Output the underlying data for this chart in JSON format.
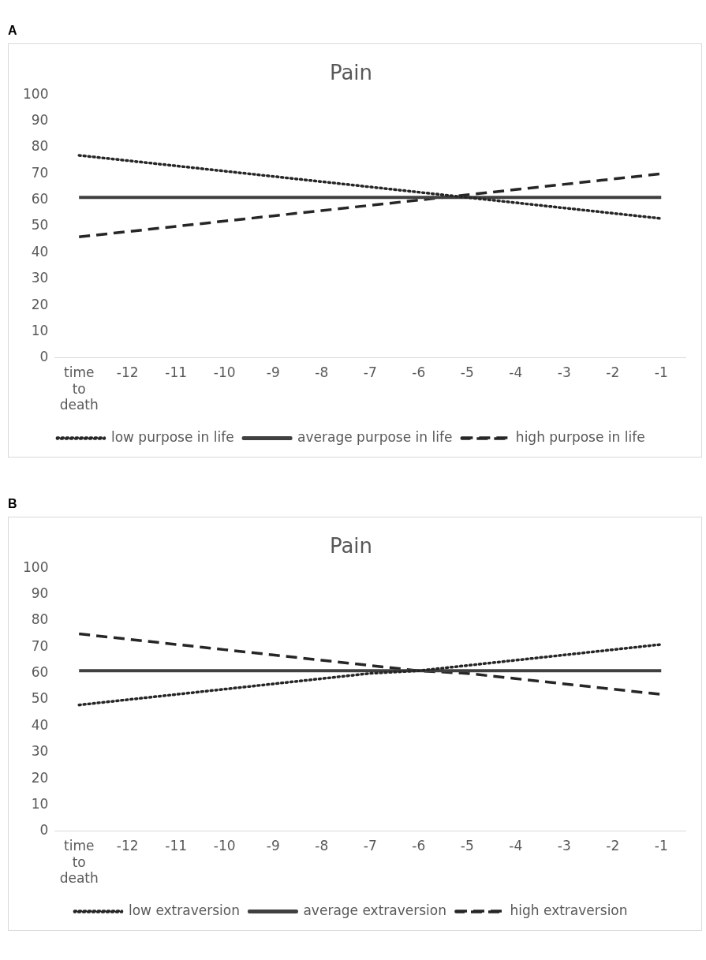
{
  "chart_data": [
    {
      "type": "line",
      "title": "Pain",
      "annotations": [
        "A"
      ],
      "categories": [
        "time to death",
        "-12",
        "-11",
        "-10",
        "-9",
        "-8",
        "-7",
        "-6",
        "-5",
        "-4",
        "-3",
        "-2",
        "-1"
      ],
      "ylim": [
        0,
        100
      ],
      "yticks": [
        0,
        10,
        20,
        30,
        40,
        50,
        60,
        70,
        80,
        90,
        100
      ],
      "grid": false,
      "legend": "bottom",
      "marker": "none",
      "series": [
        {
          "name": "low purpose in life",
          "color": "#262626",
          "line_style": "dotted",
          "values": [
            77,
            75,
            73,
            71,
            69,
            67,
            65,
            63,
            61,
            59,
            57,
            55,
            53
          ]
        },
        {
          "name": "average purpose in life",
          "color": "#404040",
          "line_style": "solid",
          "values": [
            61,
            61,
            61,
            61,
            61,
            61,
            61,
            61,
            61,
            61,
            61,
            61,
            61
          ]
        },
        {
          "name": "high purpose in life",
          "color": "#262626",
          "line_style": "dashed",
          "values": [
            46,
            48,
            50,
            52,
            54,
            56,
            58,
            60,
            62,
            64,
            66,
            68,
            70
          ]
        }
      ]
    },
    {
      "type": "line",
      "title": "Pain",
      "annotations": [
        "B"
      ],
      "categories": [
        "time to death",
        "-12",
        "-11",
        "-10",
        "-9",
        "-8",
        "-7",
        "-6",
        "-5",
        "-4",
        "-3",
        "-2",
        "-1"
      ],
      "ylim": [
        0,
        100
      ],
      "yticks": [
        0,
        10,
        20,
        30,
        40,
        50,
        60,
        70,
        80,
        90,
        100
      ],
      "grid": false,
      "legend": "bottom",
      "marker": "none",
      "series": [
        {
          "name": "low extraversion",
          "color": "#262626",
          "line_style": "dotted",
          "values": [
            48,
            50,
            52,
            54,
            56,
            58,
            60,
            61,
            63,
            65,
            67,
            69,
            71
          ]
        },
        {
          "name": "average extraversion",
          "color": "#404040",
          "line_style": "solid",
          "values": [
            61,
            61,
            61,
            61,
            61,
            61,
            61,
            61,
            61,
            61,
            61,
            61,
            61
          ]
        },
        {
          "name": "high extraversion",
          "color": "#262626",
          "line_style": "dashed",
          "values": [
            75,
            73,
            71,
            69,
            67,
            65,
            63,
            61,
            60,
            58,
            56,
            54,
            52
          ]
        }
      ]
    }
  ]
}
